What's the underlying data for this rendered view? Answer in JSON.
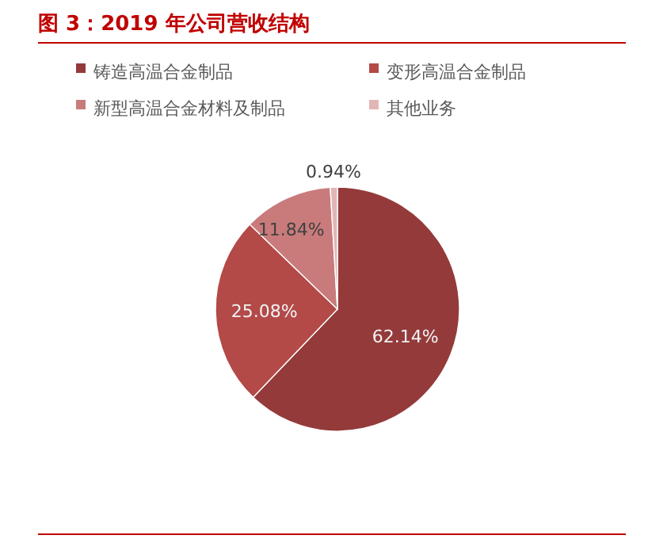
{
  "chart_data": {
    "type": "pie",
    "title": "图 3：2019 年公司营收结构",
    "categories": [
      "铸造高温合金制品",
      "变形高温合金制品",
      "新型高温合金材料及制品",
      "其他业务"
    ],
    "values": [
      62.14,
      25.08,
      11.84,
      0.94
    ],
    "value_labels": [
      "62.14%",
      "25.08%",
      "11.84%",
      "0.94%"
    ],
    "colors": [
      "#943a3a",
      "#b34a48",
      "#c97b7b",
      "#e2b6b6"
    ],
    "legend": "top"
  }
}
